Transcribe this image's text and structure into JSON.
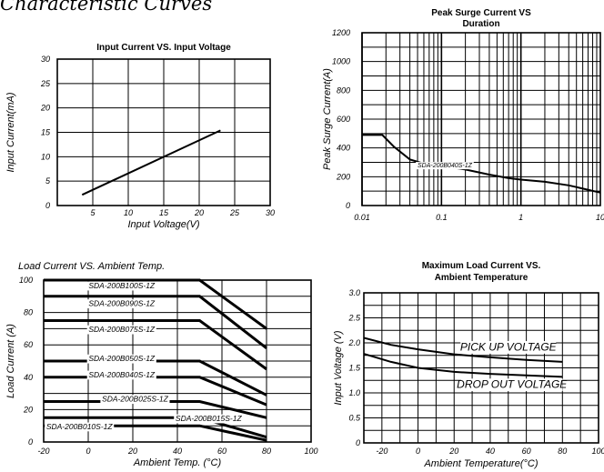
{
  "page_title": "Characteristic Curves",
  "chart_data": [
    {
      "id": "input-current",
      "type": "line",
      "title": "Input Current VS. Input Voltage",
      "xlabel": "Input  Voltage(V)",
      "ylabel": "Input Current(mA)",
      "xlim": [
        0,
        30
      ],
      "ylim": [
        0,
        30
      ],
      "x_ticks": [
        "5",
        "10",
        "15",
        "20",
        "25",
        "30"
      ],
      "y_ticks": [
        "0",
        "5",
        "10",
        "15",
        "20",
        "25",
        "30"
      ],
      "x_grid_step": 5,
      "y_grid_step": 5,
      "series": [
        {
          "x": [
            3.5,
            23
          ],
          "y": [
            2.2,
            15.4
          ]
        }
      ]
    },
    {
      "id": "peak-surge",
      "type": "line",
      "title": "Peak Surge Current VS Duration",
      "xlabel": "",
      "ylabel": "Peak Surge Current(A)",
      "xscale": "log",
      "xlim": [
        0.01,
        10
      ],
      "ylim": [
        0,
        1200
      ],
      "x_ticks": [
        "0.01",
        "0.1",
        "1",
        "10"
      ],
      "y_ticks": [
        "0",
        "200",
        "400",
        "600",
        "800",
        "1000",
        "1200"
      ],
      "y_grid_step": 100,
      "series": [
        {
          "name": "SDA-200B040S-1Z",
          "x": [
            0.01,
            0.018,
            0.025,
            0.04,
            0.07,
            0.1,
            0.2,
            0.4,
            0.7,
            1,
            2,
            4,
            10
          ],
          "y": [
            490,
            490,
            410,
            320,
            280,
            275,
            250,
            215,
            190,
            180,
            165,
            140,
            90
          ]
        }
      ]
    },
    {
      "id": "load-current",
      "type": "line",
      "title": "Load Current VS.  Ambient Temp.",
      "xlabel": "Ambient Temp. (°C)",
      "ylabel": "Load Current (A)",
      "xlim": [
        -20,
        100
      ],
      "ylim": [
        0,
        100
      ],
      "x_ticks": [
        "-20",
        "0",
        "20",
        "40",
        "60",
        "80",
        "100"
      ],
      "y_ticks": [
        "0",
        "20",
        "40",
        "60",
        "80",
        "100"
      ],
      "x_grid_step": 20,
      "y_grid_step": 10,
      "series": [
        {
          "name": "SDA-200B100S-1Z",
          "x": [
            -20,
            50,
            80
          ],
          "y": [
            100,
            100,
            70
          ]
        },
        {
          "name": "SDA-200B090S-1Z",
          "x": [
            -20,
            50,
            80
          ],
          "y": [
            90,
            90,
            58
          ]
        },
        {
          "name": "SDA-200B075S-1Z",
          "x": [
            -20,
            50,
            80
          ],
          "y": [
            75,
            75,
            45
          ]
        },
        {
          "name": "SDA-200B050S-1Z",
          "x": [
            -20,
            50,
            80
          ],
          "y": [
            50,
            50,
            29
          ]
        },
        {
          "name": "SDA-200B040S-1Z",
          "x": [
            -20,
            50,
            80
          ],
          "y": [
            40,
            40,
            23
          ]
        },
        {
          "name": "SDA-200B025S-1Z",
          "x": [
            -20,
            50,
            80
          ],
          "y": [
            25,
            25,
            15
          ]
        },
        {
          "name": "SDA-200B015S-1Z",
          "x": [
            -20,
            50,
            80
          ],
          "y": [
            15,
            15,
            3
          ]
        },
        {
          "name": "SDA-200B010S-1Z",
          "x": [
            -20,
            50,
            80
          ],
          "y": [
            10,
            10,
            1
          ]
        }
      ]
    },
    {
      "id": "max-load",
      "type": "line",
      "title": "Maximum Load Current VS. Ambient  Temperature",
      "xlabel": "Ambient Temperature(°C)",
      "ylabel": "Input Voltage (V)",
      "xlim": [
        -30,
        100
      ],
      "ylim": [
        0,
        3.0
      ],
      "x_ticks": [
        "-20",
        "0",
        "20",
        "40",
        "60",
        "80",
        "100"
      ],
      "y_ticks": [
        "0",
        "0.5",
        "1.0",
        "1.5",
        "2.0",
        "2.5",
        "3.0"
      ],
      "x_grid_step": 10,
      "y_grid_step": 0.25,
      "series": [
        {
          "name": "PICK UP VOLTAGE",
          "x": [
            -30,
            -15,
            0,
            20,
            40,
            60,
            80
          ],
          "y": [
            2.1,
            1.96,
            1.87,
            1.77,
            1.71,
            1.66,
            1.62
          ]
        },
        {
          "name": "DROP OUT VOLTAGE",
          "x": [
            -30,
            -15,
            0,
            20,
            40,
            60,
            80
          ],
          "y": [
            1.78,
            1.62,
            1.5,
            1.42,
            1.38,
            1.35,
            1.32
          ]
        }
      ]
    }
  ]
}
